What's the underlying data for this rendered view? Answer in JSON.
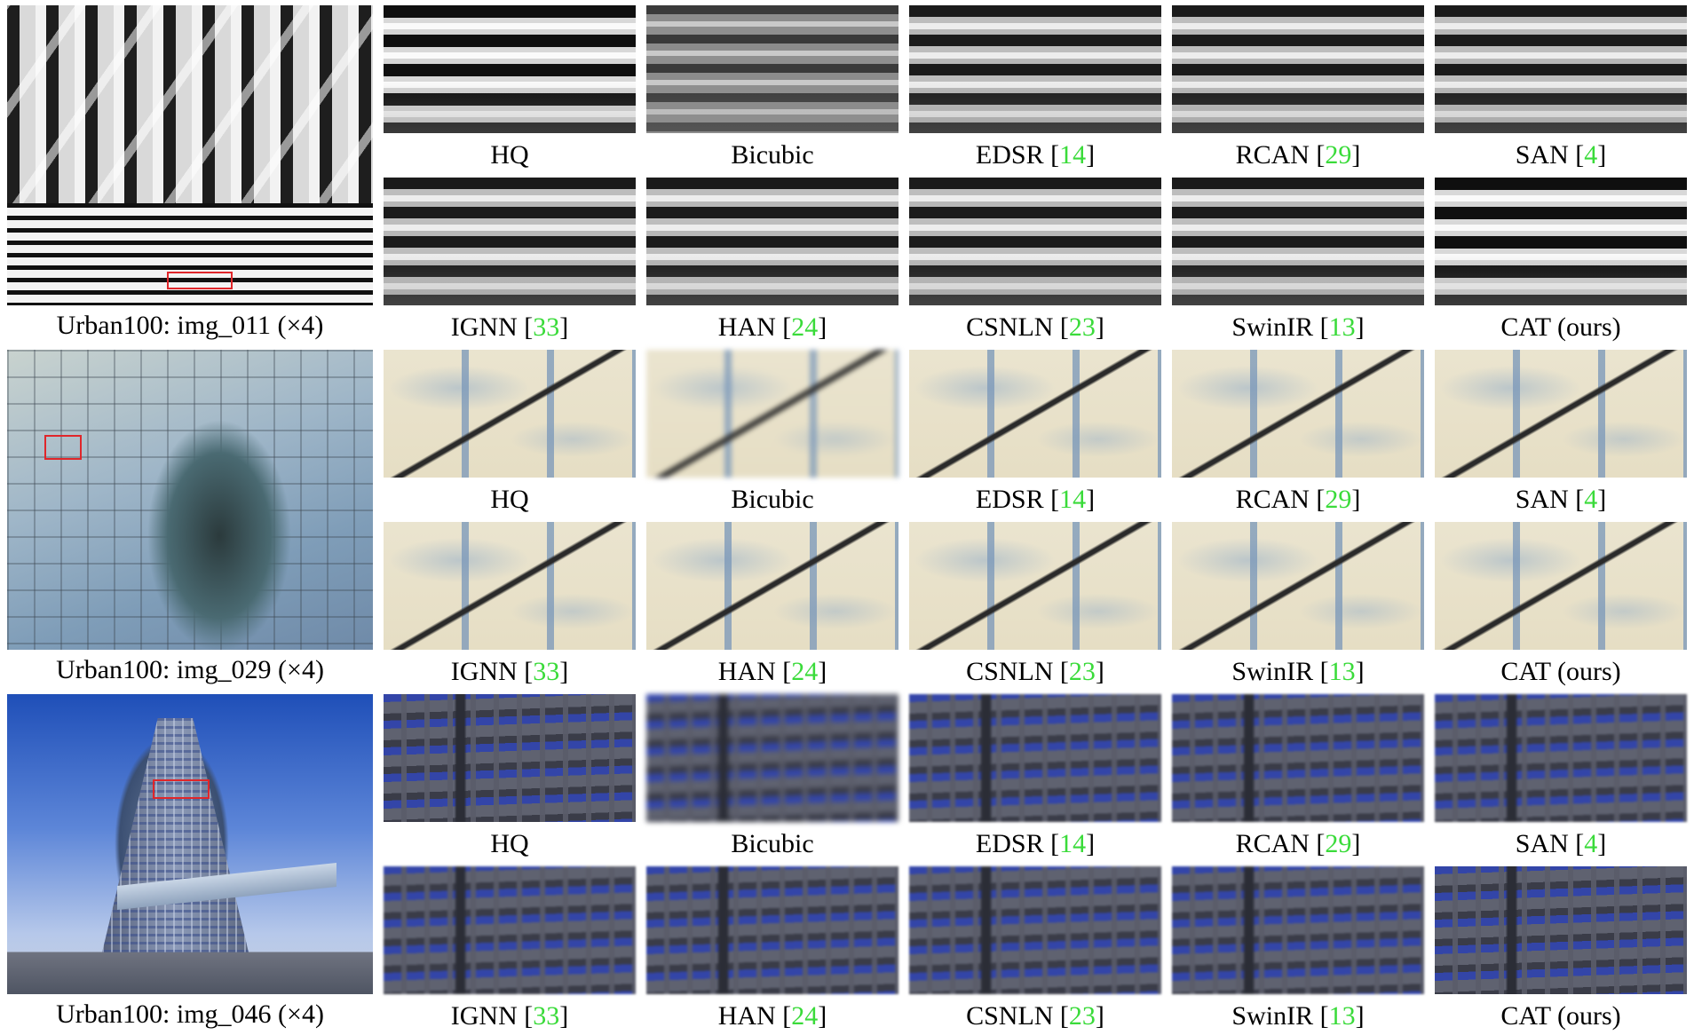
{
  "figure": {
    "rows": [
      {
        "overview_label": "Urban100: img_011 (×4)",
        "patches_top": [
          {
            "name": "HQ",
            "ref": ""
          },
          {
            "name": "Bicubic",
            "ref": ""
          },
          {
            "name": "EDSR [",
            "ref": "14",
            "close": "]"
          },
          {
            "name": "RCAN [",
            "ref": "29",
            "close": "]"
          },
          {
            "name": "SAN [",
            "ref": "4",
            "close": "]"
          }
        ],
        "patches_bottom": [
          {
            "name": "IGNN [",
            "ref": "33",
            "close": "]"
          },
          {
            "name": "HAN [",
            "ref": "24",
            "close": "]"
          },
          {
            "name": "CSNLN [",
            "ref": "23",
            "close": "]"
          },
          {
            "name": "SwinIR [",
            "ref": "13",
            "close": "]"
          },
          {
            "name": "CAT (ours)",
            "ref": ""
          }
        ]
      },
      {
        "overview_label": "Urban100: img_029 (×4)",
        "patches_top": [
          {
            "name": "HQ",
            "ref": ""
          },
          {
            "name": "Bicubic",
            "ref": ""
          },
          {
            "name": "EDSR [",
            "ref": "14",
            "close": "]"
          },
          {
            "name": "RCAN [",
            "ref": "29",
            "close": "]"
          },
          {
            "name": "SAN [",
            "ref": "4",
            "close": "]"
          }
        ],
        "patches_bottom": [
          {
            "name": "IGNN [",
            "ref": "33",
            "close": "]"
          },
          {
            "name": "HAN [",
            "ref": "24",
            "close": "]"
          },
          {
            "name": "CSNLN [",
            "ref": "23",
            "close": "]"
          },
          {
            "name": "SwinIR [",
            "ref": "13",
            "close": "]"
          },
          {
            "name": "CAT (ours)",
            "ref": ""
          }
        ]
      },
      {
        "overview_label": "Urban100: img_046 (×4)",
        "patches_top": [
          {
            "name": "HQ",
            "ref": ""
          },
          {
            "name": "Bicubic",
            "ref": ""
          },
          {
            "name": "EDSR [",
            "ref": "14",
            "close": "]"
          },
          {
            "name": "RCAN [",
            "ref": "29",
            "close": "]"
          },
          {
            "name": "SAN [",
            "ref": "4",
            "close": "]"
          }
        ],
        "patches_bottom": [
          {
            "name": "IGNN [",
            "ref": "33",
            "close": "]"
          },
          {
            "name": "HAN [",
            "ref": "24",
            "close": "]"
          },
          {
            "name": "CSNLN [",
            "ref": "23",
            "close": "]"
          },
          {
            "name": "SwinIR [",
            "ref": "13",
            "close": "]"
          },
          {
            "name": "CAT (ours)",
            "ref": ""
          }
        ]
      }
    ],
    "colors": {
      "reference_link": "#3adb3a",
      "roi_box": "#e0262a"
    }
  }
}
